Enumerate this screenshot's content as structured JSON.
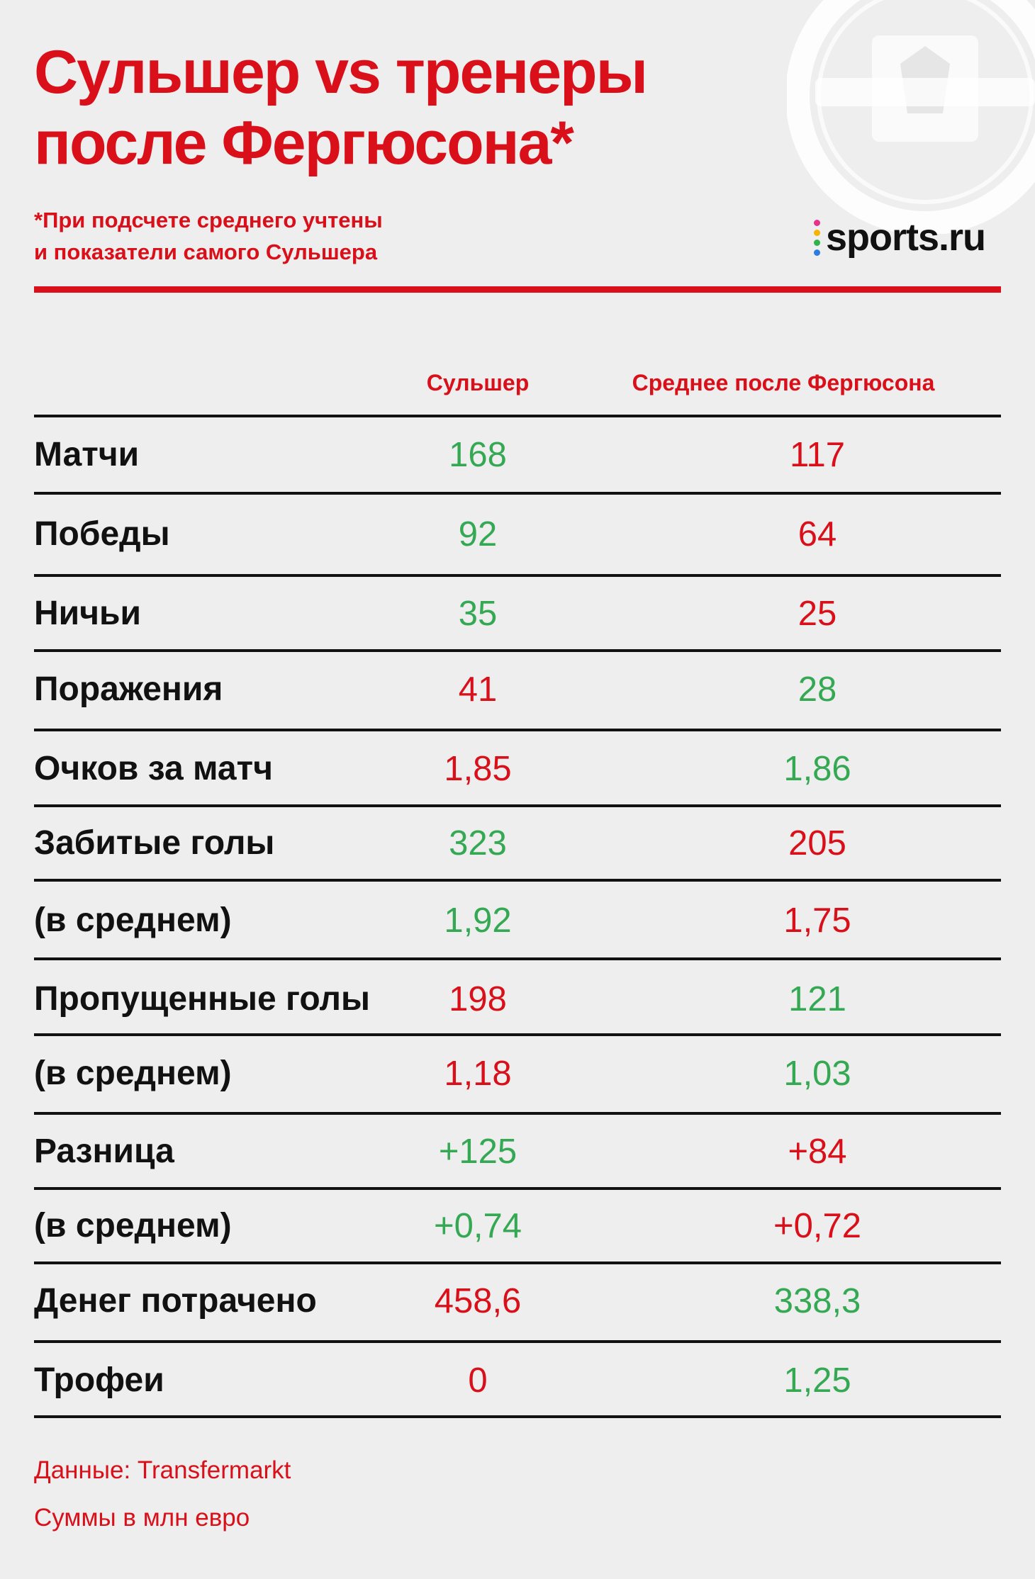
{
  "colors": {
    "red": "#d9101a",
    "green": "#34a853",
    "text": "#111111",
    "background": "#eeeeee"
  },
  "title": {
    "line1": "Сульшер vs тренеры",
    "line2": "после Фергюсона*"
  },
  "subtitle": {
    "line1": "*При подсчете среднего учтены",
    "line2": "и показатели самого Сульшера"
  },
  "logo": {
    "text": "sports.ru",
    "crest_icon": "manchester-united-crest-icon"
  },
  "chart_data": {
    "type": "table",
    "columns": [
      "Сульшер",
      "Среднее после Фергюсона"
    ],
    "rows": [
      {
        "label": "Матчи",
        "values": [
          "168",
          "117"
        ],
        "colors": [
          "green",
          "red"
        ]
      },
      {
        "label": "Победы",
        "values": [
          "92",
          "64"
        ],
        "colors": [
          "green",
          "red"
        ]
      },
      {
        "label": "Ничьи",
        "values": [
          "35",
          "25"
        ],
        "colors": [
          "green",
          "red"
        ]
      },
      {
        "label": "Поражения",
        "values": [
          "41",
          "28"
        ],
        "colors": [
          "red",
          "green"
        ]
      },
      {
        "label": "Очков за матч",
        "values": [
          "1,85",
          "1,86"
        ],
        "colors": [
          "red",
          "green"
        ]
      },
      {
        "label": "Забитые голы",
        "values": [
          "323",
          "205"
        ],
        "colors": [
          "green",
          "red"
        ]
      },
      {
        "label": "(в среднем)",
        "values": [
          "1,92",
          "1,75"
        ],
        "colors": [
          "green",
          "red"
        ]
      },
      {
        "label": "Пропущенные голы",
        "values": [
          "198",
          "121"
        ],
        "colors": [
          "red",
          "green"
        ]
      },
      {
        "label": "(в среднем)",
        "values": [
          "1,18",
          "1,03"
        ],
        "colors": [
          "red",
          "green"
        ]
      },
      {
        "label": "Разница",
        "values": [
          "+125",
          "+84"
        ],
        "colors": [
          "green",
          "red"
        ]
      },
      {
        "label": "(в среднем)",
        "values": [
          "+0,74",
          "+0,72"
        ],
        "colors": [
          "green",
          "red"
        ]
      },
      {
        "label": "Денег потрачено",
        "values": [
          "458,6",
          "338,3"
        ],
        "colors": [
          "red",
          "green"
        ]
      },
      {
        "label": "Трофеи",
        "values": [
          "0",
          "1,25"
        ],
        "colors": [
          "red",
          "green"
        ]
      }
    ]
  },
  "footer": {
    "source": "Данные: Transfermarkt",
    "units": "Суммы в млн евро"
  }
}
